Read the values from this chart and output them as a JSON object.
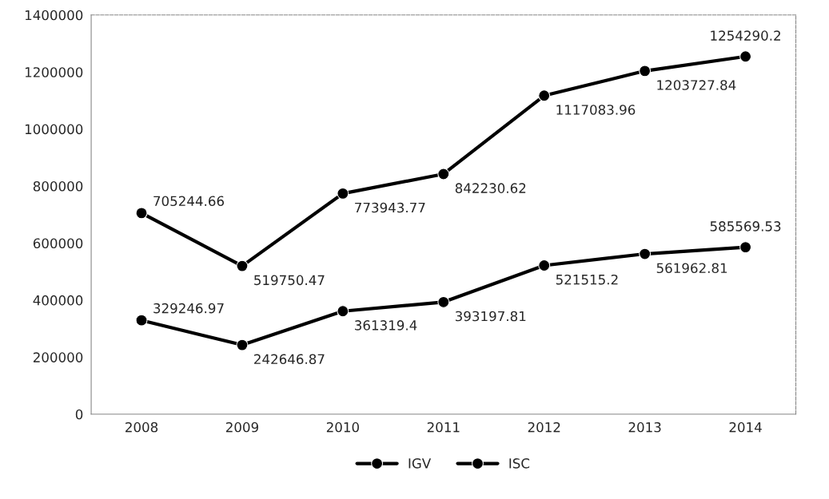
{
  "chart_data": {
    "type": "line",
    "categories": [
      "2008",
      "2009",
      "2010",
      "2011",
      "2012",
      "2013",
      "2014"
    ],
    "series": [
      {
        "name": "IGV",
        "color": "#000000",
        "values": [
          705244.66,
          519750.47,
          773943.77,
          842230.62,
          1117083.96,
          1203727.84,
          1254290.2
        ]
      },
      {
        "name": "ISC",
        "color": "#000000",
        "values": [
          329246.97,
          242646.87,
          361319.4,
          393197.81,
          521515.2,
          561962.81,
          585569.53
        ]
      }
    ],
    "ylim": [
      0,
      1400000
    ],
    "yticks": [
      0,
      200000,
      400000,
      600000,
      800000,
      1000000,
      1200000,
      1400000
    ],
    "data_labels": true,
    "grid": false,
    "legend": "bottom",
    "marker": "circle",
    "line_style": "solid"
  }
}
